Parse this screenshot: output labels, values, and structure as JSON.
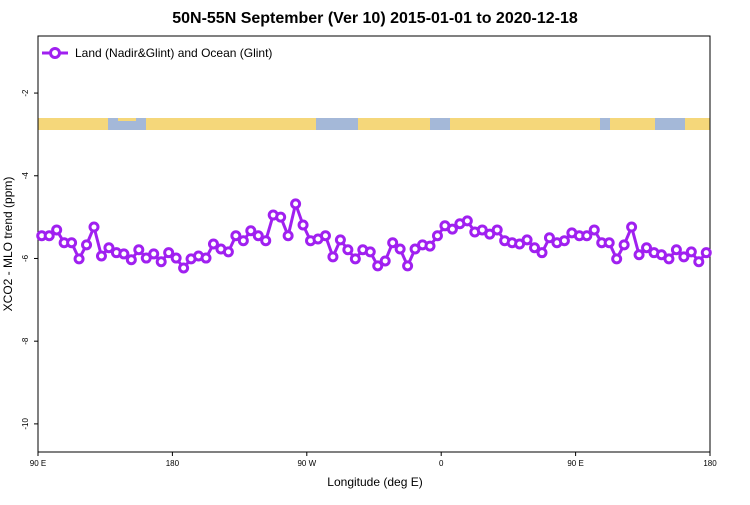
{
  "chart_data": {
    "type": "line",
    "title": "50N-55N September (Ver 10)   2015-01-01 to 2020-12-18",
    "x_label": "Longitude (deg E)",
    "y_label": "XCO2 - MLO trend (ppm)",
    "xlim": [
      90,
      540
    ],
    "xticks": [
      {
        "value": 90,
        "label": "90 E"
      },
      180,
      {
        "value": 270,
        "label": "90 W"
      },
      {
        "value": 360,
        "label": "0"
      },
      {
        "value": 450,
        "label": "90 E"
      },
      {
        "value": 540,
        "label": "180"
      }
    ],
    "ylim": [
      -10.68,
      -0.62
    ],
    "yticks": [
      -2,
      -4,
      -6,
      -8,
      -10
    ],
    "legend": "top-left",
    "x": [
      92.5,
      97.5,
      102.5,
      107.5,
      112.5,
      117.5,
      122.5,
      127.5,
      132.5,
      137.5,
      142.5,
      147.5,
      152.5,
      157.5,
      162.5,
      167.5,
      172.5,
      177.5,
      182.5,
      187.5,
      192.5,
      197.5,
      202.5,
      207.5,
      212.5,
      217.5,
      222.5,
      227.5,
      232.5,
      237.5,
      242.5,
      247.5,
      252.5,
      257.5,
      262.5,
      267.5,
      272.5,
      277.5,
      282.5,
      287.5,
      292.5,
      297.5,
      302.5,
      307.5,
      312.5,
      317.5,
      322.5,
      327.5,
      332.5,
      337.5,
      342.5,
      347.5,
      352.5,
      357.5,
      362.5,
      367.5,
      372.5,
      377.5,
      382.5,
      387.5,
      392.5,
      397.5,
      402.5,
      407.5,
      412.5,
      417.5,
      422.5,
      427.5,
      432.5,
      437.5,
      442.5,
      447.5,
      452.5,
      457.5,
      462.5,
      467.5,
      472.5,
      477.5,
      482.5,
      487.5,
      492.5,
      497.5,
      502.5,
      507.5,
      512.5,
      517.5,
      522.5,
      527.5,
      532.5,
      537.5
    ],
    "series": [
      {
        "name": "Land (Nadir&Glint) and Ocean (Glint)",
        "color": "#a020f0",
        "values": [
          -5.45,
          -5.45,
          -5.31,
          -5.62,
          -5.62,
          -6.01,
          -5.67,
          -5.24,
          -5.94,
          -5.74,
          -5.86,
          -5.89,
          -6.03,
          -5.79,
          -5.99,
          -5.89,
          -6.08,
          -5.86,
          -5.99,
          -6.23,
          -6.01,
          -5.94,
          -5.99,
          -5.65,
          -5.77,
          -5.84,
          -5.45,
          -5.57,
          -5.33,
          -5.45,
          -5.57,
          -4.95,
          -5.0,
          -5.45,
          -4.68,
          -5.19,
          -5.57,
          -5.53,
          -5.45,
          -5.96,
          -5.55,
          -5.79,
          -6.01,
          -5.79,
          -5.84,
          -6.18,
          -6.06,
          -5.62,
          -5.77,
          -6.18,
          -5.77,
          -5.67,
          -5.7,
          -5.45,
          -5.21,
          -5.29,
          -5.16,
          -5.09,
          -5.36,
          -5.31,
          -5.41,
          -5.31,
          -5.57,
          -5.62,
          -5.65,
          -5.55,
          -5.74,
          -5.86,
          -5.5,
          -5.62,
          -5.57,
          -5.38,
          -5.45,
          -5.45,
          -5.31,
          -5.62,
          -5.62,
          -6.01,
          -5.67,
          -5.24,
          -5.91,
          -5.74,
          -5.86,
          -5.91,
          -6.01,
          -5.79,
          -5.96,
          -5.84,
          -6.08,
          -5.86
        ]
      }
    ]
  }
}
